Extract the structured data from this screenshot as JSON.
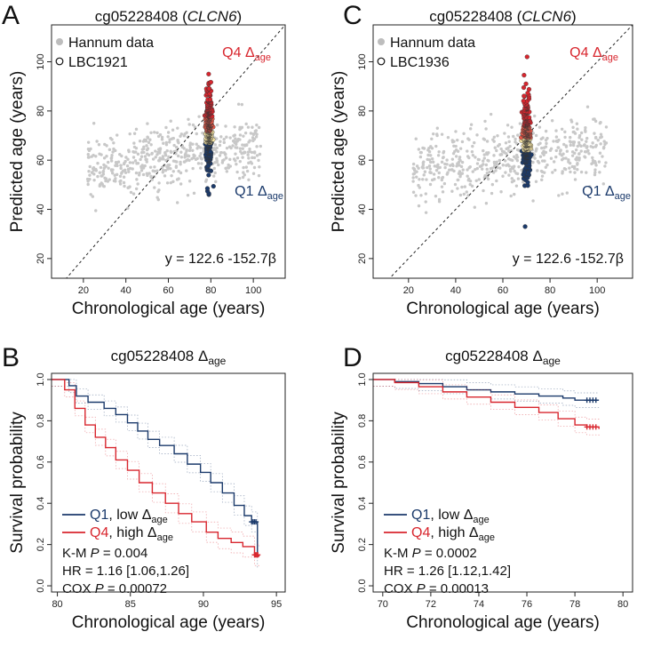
{
  "colors": {
    "q4": "#d8262e",
    "q1": "#1b3a6b",
    "mid_high": "#e85a4a",
    "mid_low": "#f7e6a4",
    "hannum": "#c8c8c8"
  },
  "chart_data": [
    {
      "type": "scatter",
      "panel": "A",
      "title_prefix": "cg05228408 (",
      "title_gene": "CLCN6",
      "title_suffix": ")",
      "xlabel": "Chronological age (years)",
      "ylabel": "Predicted age (years)",
      "xlim": [
        5,
        115
      ],
      "ylim": [
        12,
        115
      ],
      "xticks": [
        20,
        40,
        60,
        80,
        100
      ],
      "yticks": [
        20,
        40,
        60,
        80,
        100
      ],
      "legend": [
        {
          "name": "Hannum data",
          "marker": "filled-grey"
        },
        {
          "name": "LBC1921",
          "marker": "open-circle"
        }
      ],
      "q4_label": "Q4 Δ",
      "q4_sub": "age",
      "q1_label": "Q1 Δ",
      "q1_sub": "age",
      "equation": "y = 122.6 -152.7β",
      "reference_line": "y = x",
      "cohort": {
        "age": 79,
        "pred_min": 46,
        "pred_max": 95
      }
    },
    {
      "type": "scatter",
      "panel": "C",
      "title_prefix": "cg05228408 (",
      "title_gene": "CLCN6",
      "title_suffix": ")",
      "xlabel": "Chronological age (years)",
      "ylabel": "Predicted age (years)",
      "xlim": [
        5,
        115
      ],
      "ylim": [
        12,
        115
      ],
      "xticks": [
        20,
        40,
        60,
        80,
        100
      ],
      "yticks": [
        20,
        40,
        60,
        80,
        100
      ],
      "legend": [
        {
          "name": "Hannum data",
          "marker": "filled-grey"
        },
        {
          "name": "LBC1936",
          "marker": "open-circle"
        }
      ],
      "q4_label": "Q4 Δ",
      "q4_sub": "age",
      "q1_label": "Q1 Δ",
      "q1_sub": "age",
      "equation": "y = 122.6 -152.7β",
      "reference_line": "y = x",
      "cohort": {
        "age": 70,
        "pred_min": 33,
        "pred_max": 102
      }
    },
    {
      "type": "line",
      "panel": "B",
      "title_main": "cg05228408 Δ",
      "title_sub": "age",
      "xlabel": "Chronological age (years)",
      "ylabel": "Survival probability",
      "xlim": [
        79.6,
        95.6
      ],
      "ylim": [
        -0.03,
        1.03
      ],
      "xticks": [
        80,
        85,
        90,
        95
      ],
      "yticks": [
        0.0,
        0.2,
        0.4,
        0.6,
        0.8,
        1.0
      ],
      "series": [
        {
          "name": "Q1",
          "legend_suffix": ", low Δ",
          "legend_sub": "age",
          "color": "#1b3a6b",
          "x": [
            79.6,
            80.8,
            81.3,
            82.1,
            83.2,
            84.0,
            84.8,
            85.5,
            86.2,
            87.0,
            88.0,
            88.9,
            89.8,
            90.5,
            91.3,
            92.1,
            92.8,
            93.3,
            93.7
          ],
          "y": [
            1.0,
            0.97,
            0.92,
            0.89,
            0.86,
            0.83,
            0.79,
            0.75,
            0.71,
            0.68,
            0.64,
            0.59,
            0.55,
            0.5,
            0.45,
            0.39,
            0.34,
            0.31,
            0.14
          ]
        },
        {
          "name": "Q4",
          "legend_suffix": ", high Δ",
          "legend_sub": "age",
          "color": "#d8262e",
          "x": [
            79.6,
            80.5,
            81.2,
            81.9,
            82.6,
            83.3,
            84.0,
            84.8,
            85.6,
            86.5,
            87.4,
            88.3,
            89.2,
            90.2,
            91.0,
            91.9,
            92.7,
            93.5,
            93.8
          ],
          "y": [
            1.0,
            0.95,
            0.86,
            0.78,
            0.72,
            0.67,
            0.61,
            0.56,
            0.5,
            0.45,
            0.4,
            0.35,
            0.31,
            0.26,
            0.23,
            0.21,
            0.19,
            0.15,
            0.14
          ]
        }
      ],
      "stats": [
        {
          "prefix": "K-M ",
          "italic": "P",
          "suffix": " = 0.004"
        },
        {
          "prefix": "HR = 1.16 [1.06,1.26]",
          "italic": "",
          "suffix": ""
        },
        {
          "prefix": "COX ",
          "italic": "P",
          "suffix": " = 0.00072"
        }
      ]
    },
    {
      "type": "line",
      "panel": "D",
      "title_main": "cg05228408 Δ",
      "title_sub": "age",
      "xlabel": "Chronological age (years)",
      "ylabel": "Survival probability",
      "xlim": [
        69.6,
        80.4
      ],
      "ylim": [
        -0.03,
        1.03
      ],
      "xticks": [
        70,
        72,
        74,
        76,
        78,
        80
      ],
      "yticks": [
        0.0,
        0.2,
        0.4,
        0.6,
        0.8,
        1.0
      ],
      "series": [
        {
          "name": "Q1",
          "legend_suffix": ", low Δ",
          "legend_sub": "age",
          "color": "#1b3a6b",
          "x": [
            69.6,
            70.5,
            71.5,
            72.5,
            73.5,
            74.5,
            75.5,
            76.5,
            77.5,
            78.0,
            78.5,
            79.0
          ],
          "y": [
            1.0,
            0.99,
            0.98,
            0.965,
            0.95,
            0.94,
            0.93,
            0.92,
            0.91,
            0.9,
            0.9,
            0.9
          ]
        },
        {
          "name": "Q4",
          "legend_suffix": ", high Δ",
          "legend_sub": "age",
          "color": "#d8262e",
          "x": [
            69.6,
            70.5,
            71.5,
            72.5,
            73.5,
            74.5,
            75.5,
            76.5,
            77.3,
            78.0,
            78.5,
            79.0
          ],
          "y": [
            1.0,
            0.985,
            0.965,
            0.94,
            0.915,
            0.89,
            0.865,
            0.84,
            0.81,
            0.78,
            0.77,
            0.76
          ]
        }
      ],
      "stats": [
        {
          "prefix": "K-M ",
          "italic": "P",
          "suffix": " = 0.0002"
        },
        {
          "prefix": "HR = 1.26 [1.12,1.42]",
          "italic": "",
          "suffix": ""
        },
        {
          "prefix": "COX ",
          "italic": "P",
          "suffix": " = 0.00013"
        }
      ]
    }
  ]
}
